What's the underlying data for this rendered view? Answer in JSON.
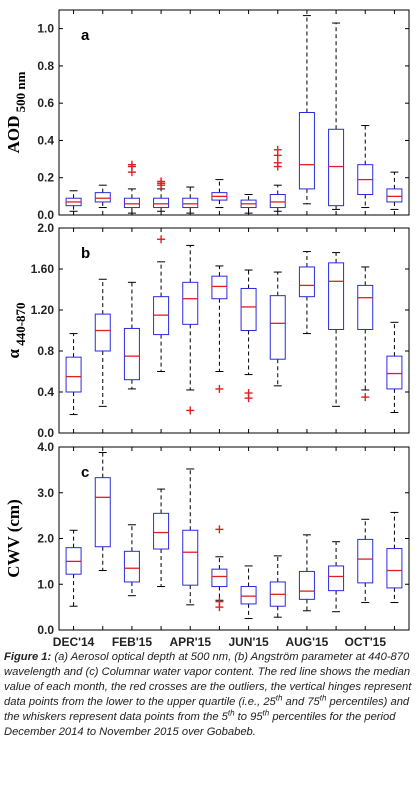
{
  "chart_data": [
    {
      "type": "box",
      "panel_label": "a",
      "ylabel": "AOD",
      "ylabel_sub": "500 nm",
      "ylim": [
        0,
        1.1
      ],
      "yticks": [
        "0.0",
        "0.2",
        "0.4",
        "0.6",
        "0.8",
        "1.0"
      ],
      "ytick_values": [
        0,
        0.2,
        0.4,
        0.6,
        0.8,
        1.0
      ],
      "boxes": [
        {
          "lw": 0.02,
          "q1": 0.05,
          "med": 0.07,
          "q3": 0.09,
          "hw": 0.13,
          "out": []
        },
        {
          "lw": 0.04,
          "q1": 0.07,
          "med": 0.09,
          "q3": 0.12,
          "hw": 0.16,
          "out": []
        },
        {
          "lw": 0.01,
          "q1": 0.04,
          "med": 0.06,
          "q3": 0.09,
          "hw": 0.14,
          "out": [
            0.23,
            0.26,
            0.27
          ]
        },
        {
          "lw": 0.02,
          "q1": 0.04,
          "med": 0.06,
          "q3": 0.09,
          "hw": 0.14,
          "out": [
            0.16,
            0.17,
            0.18
          ]
        },
        {
          "lw": 0.01,
          "q1": 0.04,
          "med": 0.06,
          "q3": 0.09,
          "hw": 0.15,
          "out": []
        },
        {
          "lw": 0.04,
          "q1": 0.08,
          "med": 0.1,
          "q3": 0.12,
          "hw": 0.19,
          "out": []
        },
        {
          "lw": 0.01,
          "q1": 0.04,
          "med": 0.06,
          "q3": 0.08,
          "hw": 0.11,
          "out": []
        },
        {
          "lw": 0.02,
          "q1": 0.04,
          "med": 0.07,
          "q3": 0.11,
          "hw": 0.16,
          "out": [
            0.26,
            0.28,
            0.32,
            0.35
          ]
        },
        {
          "lw": 0.06,
          "q1": 0.14,
          "med": 0.27,
          "q3": 0.55,
          "hw": 1.07,
          "out": []
        },
        {
          "lw": 0.03,
          "q1": 0.05,
          "med": 0.26,
          "q3": 0.46,
          "hw": 1.03,
          "out": []
        },
        {
          "lw": 0.04,
          "q1": 0.11,
          "med": 0.19,
          "q3": 0.27,
          "hw": 0.48,
          "out": []
        },
        {
          "lw": 0.03,
          "q1": 0.07,
          "med": 0.1,
          "q3": 0.14,
          "hw": 0.23,
          "out": []
        }
      ]
    },
    {
      "type": "box",
      "panel_label": "b",
      "ylabel": "α",
      "ylabel_sub": "440-870",
      "ylim": [
        0,
        2.0
      ],
      "yticks": [
        "0.0",
        "0.4",
        "0.8",
        "1.20",
        "1.60",
        "2.0"
      ],
      "ytick_values": [
        0,
        0.4,
        0.8,
        1.2,
        1.6,
        2.0
      ],
      "boxes": [
        {
          "lw": 0.18,
          "q1": 0.4,
          "med": 0.55,
          "q3": 0.74,
          "hw": 0.97,
          "out": []
        },
        {
          "lw": 0.26,
          "q1": 0.8,
          "med": 1.0,
          "q3": 1.16,
          "hw": 1.5,
          "out": []
        },
        {
          "lw": 0.43,
          "q1": 0.52,
          "med": 0.75,
          "q3": 1.02,
          "hw": 1.47,
          "out": []
        },
        {
          "lw": 0.6,
          "q1": 0.96,
          "med": 1.15,
          "q3": 1.33,
          "hw": 1.67,
          "out": [
            1.89
          ]
        },
        {
          "lw": 0.42,
          "q1": 1.06,
          "med": 1.31,
          "q3": 1.47,
          "hw": 1.83,
          "out": [
            0.22
          ]
        },
        {
          "lw": 0.6,
          "q1": 1.31,
          "med": 1.43,
          "q3": 1.53,
          "hw": 1.63,
          "out": [
            0.43
          ]
        },
        {
          "lw": 0.57,
          "q1": 1.0,
          "med": 1.23,
          "q3": 1.41,
          "hw": 1.59,
          "out": [
            0.34,
            0.39
          ]
        },
        {
          "lw": 0.46,
          "q1": 0.72,
          "med": 1.07,
          "q3": 1.34,
          "hw": 1.57,
          "out": []
        },
        {
          "lw": 0.97,
          "q1": 1.33,
          "med": 1.44,
          "q3": 1.62,
          "hw": 1.77,
          "out": []
        },
        {
          "lw": 0.26,
          "q1": 1.01,
          "med": 1.48,
          "q3": 1.66,
          "hw": 1.76,
          "out": []
        },
        {
          "lw": 0.42,
          "q1": 1.01,
          "med": 1.32,
          "q3": 1.44,
          "hw": 1.62,
          "out": [
            0.35
          ]
        },
        {
          "lw": 0.2,
          "q1": 0.43,
          "med": 0.58,
          "q3": 0.75,
          "hw": 1.08,
          "out": []
        }
      ]
    },
    {
      "type": "box",
      "panel_label": "c",
      "ylabel": "CWV (cm)",
      "ylabel_sub": "",
      "ylim": [
        0,
        4.0
      ],
      "yticks": [
        "0.0",
        "1.0",
        "2.0",
        "3.0",
        "4.0"
      ],
      "ytick_values": [
        0,
        1,
        2,
        3,
        4
      ],
      "boxes": [
        {
          "lw": 0.52,
          "q1": 1.22,
          "med": 1.5,
          "q3": 1.8,
          "hw": 2.18,
          "out": []
        },
        {
          "lw": 1.3,
          "q1": 1.82,
          "med": 2.9,
          "q3": 3.33,
          "hw": 3.88,
          "out": []
        },
        {
          "lw": 0.75,
          "q1": 1.05,
          "med": 1.35,
          "q3": 1.72,
          "hw": 2.3,
          "out": []
        },
        {
          "lw": 0.95,
          "q1": 1.77,
          "med": 2.13,
          "q3": 2.55,
          "hw": 3.08,
          "out": []
        },
        {
          "lw": 0.55,
          "q1": 0.98,
          "med": 1.7,
          "q3": 2.18,
          "hw": 3.52,
          "out": []
        },
        {
          "lw": 0.65,
          "q1": 0.95,
          "med": 1.17,
          "q3": 1.33,
          "hw": 1.6,
          "out": [
            0.5,
            0.62,
            2.2
          ]
        },
        {
          "lw": 0.25,
          "q1": 0.57,
          "med": 0.74,
          "q3": 0.95,
          "hw": 1.4,
          "out": []
        },
        {
          "lw": 0.28,
          "q1": 0.52,
          "med": 0.78,
          "q3": 1.05,
          "hw": 1.62,
          "out": []
        },
        {
          "lw": 0.42,
          "q1": 0.67,
          "med": 0.85,
          "q3": 1.28,
          "hw": 2.08,
          "out": []
        },
        {
          "lw": 0.4,
          "q1": 0.86,
          "med": 1.17,
          "q3": 1.4,
          "hw": 1.93,
          "out": []
        },
        {
          "lw": 0.6,
          "q1": 1.03,
          "med": 1.55,
          "q3": 1.98,
          "hw": 2.42,
          "out": []
        },
        {
          "lw": 0.6,
          "q1": 0.92,
          "med": 1.3,
          "q3": 1.78,
          "hw": 2.57,
          "out": []
        }
      ]
    }
  ],
  "x_tick_labels": [
    "DEC'14",
    "FEB'15",
    "APR'15",
    "JUN'15",
    "AUG'15",
    "OCT'15"
  ],
  "colors": {
    "box": "#2a2ae0",
    "median": "#e02020",
    "outlier": "#e02020",
    "whisker": "#000000"
  },
  "caption": {
    "label": "Figure 1:",
    "text_1": " (a) Aerosol optical depth at 500 nm, (b) Angström parameter at 440-870 wavelength and (c) Columnar water vapor content. The red line shows the median value of each month, the red crosses are the outliers, the vertical hinges represent data points from the lower to the upper quartile (i.e., 25",
    "sup_1": "th",
    "text_2": " and 75",
    "sup_2": "th",
    "text_3": " percentiles) and the whiskers represent data points from the 5",
    "sup_3": "th",
    "text_4": " to 95",
    "sup_4": "th",
    "text_5": " percentiles for the period December 2014 to November 2015 over Gobabeb."
  }
}
